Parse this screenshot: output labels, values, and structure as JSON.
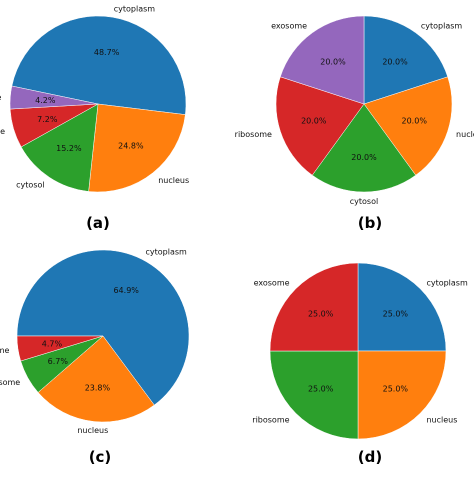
{
  "colors": {
    "cytoplasm": "#1f77b4",
    "nucleus": "#ff7f0e",
    "cytosol": "#2ca02c",
    "ribosome": "#d62728",
    "exosome": "#9467bd"
  },
  "chart_data": [
    {
      "type": "pie",
      "panel_label": "(a)",
      "slices": [
        {
          "label": "cytoplasm",
          "value": 48.7,
          "pct_text": "48.7%",
          "color": "#1f77b4"
        },
        {
          "label": "nucleus",
          "value": 24.8,
          "pct_text": "24.8%",
          "color": "#ff7f0e"
        },
        {
          "label": "cytosol",
          "value": 15.2,
          "pct_text": "15.2%",
          "color": "#2ca02c"
        },
        {
          "label": "ribosome",
          "value": 7.2,
          "pct_text": "7.2%",
          "color": "#d62728"
        },
        {
          "label": "exosome",
          "value": 4.2,
          "pct_text": "4.2%",
          "color": "#9467bd"
        }
      ]
    },
    {
      "type": "pie",
      "panel_label": "(b)",
      "slices": [
        {
          "label": "cytoplasm",
          "value": 20.0,
          "pct_text": "20.0%",
          "color": "#1f77b4"
        },
        {
          "label": "nucleus",
          "value": 20.0,
          "pct_text": "20.0%",
          "color": "#ff7f0e"
        },
        {
          "label": "cytosol",
          "value": 20.0,
          "pct_text": "20.0%",
          "color": "#2ca02c"
        },
        {
          "label": "ribosome",
          "value": 20.0,
          "pct_text": "20.0%",
          "color": "#d62728"
        },
        {
          "label": "exosome",
          "value": 20.0,
          "pct_text": "20.0%",
          "color": "#9467bd"
        }
      ]
    },
    {
      "type": "pie",
      "panel_label": "(c)",
      "slices": [
        {
          "label": "cytoplasm",
          "value": 64.9,
          "pct_text": "64.9%",
          "color": "#1f77b4"
        },
        {
          "label": "nucleus",
          "value": 23.8,
          "pct_text": "23.8%",
          "color": "#ff7f0e"
        },
        {
          "label": "ribosome",
          "value": 6.7,
          "pct_text": "6.7%",
          "color": "#2ca02c"
        },
        {
          "label": "exosome",
          "value": 4.7,
          "pct_text": "4.7%",
          "color": "#d62728"
        }
      ]
    },
    {
      "type": "pie",
      "panel_label": "(d)",
      "slices": [
        {
          "label": "cytoplasm",
          "value": 25.0,
          "pct_text": "25.0%",
          "color": "#1f77b4"
        },
        {
          "label": "nucleus",
          "value": 25.0,
          "pct_text": "25.0%",
          "color": "#ff7f0e"
        },
        {
          "label": "ribosome",
          "value": 25.0,
          "pct_text": "25.0%",
          "color": "#2ca02c"
        },
        {
          "label": "exosome",
          "value": 25.0,
          "pct_text": "25.0%",
          "color": "#d62728"
        }
      ]
    }
  ]
}
